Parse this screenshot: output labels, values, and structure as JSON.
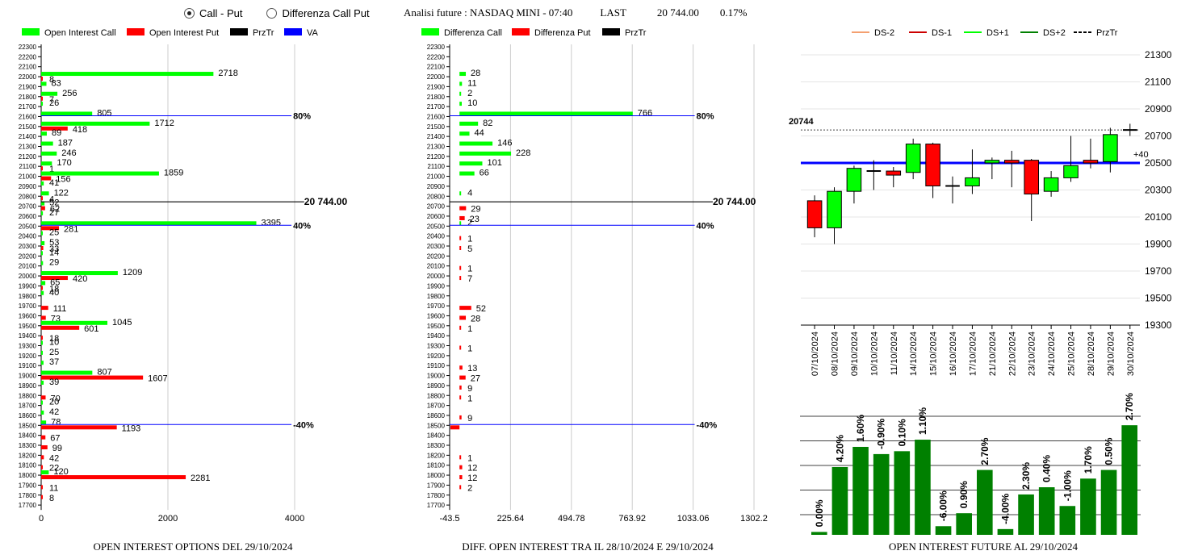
{
  "radio": {
    "option1": "Call - Put",
    "option2": "Differenza Call Put",
    "selected": 1
  },
  "header": {
    "title": "Analisi future : NASDAQ MINI - 07:40",
    "last_label": "LAST",
    "last_value": "20 744.00",
    "change": "0.17%"
  },
  "captions": {
    "left": "OPEN INTEREST OPTIONS DEL 29/10/2024",
    "middle": "DIFF. OPEN INTEREST TRA IL 28/10/2024 E 29/10/2024",
    "right": "OPEN INTEREST FUTURE AL 29/10/2024"
  },
  "colors": {
    "green": "#00ff00",
    "red": "#ff0000",
    "black": "#000000",
    "blue": "#0000ff",
    "bar_green": "#008000",
    "ds_minus2": "#f4a070"
  },
  "chart_data": [
    {
      "type": "bar",
      "orientation": "horizontal",
      "legend": [
        "Open Interest Call",
        "Open Interest Put",
        "PrzTr",
        "VA"
      ],
      "categories": [
        "22300",
        "22200",
        "22100",
        "22000",
        "21900",
        "21800",
        "21700",
        "21600",
        "21500",
        "21400",
        "21300",
        "21200",
        "21100",
        "21000",
        "20900",
        "20800",
        "20700",
        "20600",
        "20500",
        "20400",
        "20300",
        "20200",
        "20100",
        "20000",
        "19900",
        "19800",
        "19700",
        "19600",
        "19500",
        "19400",
        "19300",
        "19200",
        "19100",
        "19000",
        "18900",
        "18800",
        "18700",
        "18600",
        "18500",
        "18400",
        "18300",
        "18200",
        "18100",
        "18000",
        "17900",
        "17800",
        "17700"
      ],
      "series": [
        {
          "name": "Open Interest Call",
          "values": [
            0,
            0,
            0,
            2718,
            83,
            256,
            26,
            805,
            1712,
            89,
            187,
            246,
            170,
            1859,
            41,
            122,
            52,
            27,
            3395,
            25,
            53,
            14,
            29,
            1209,
            65,
            40,
            0,
            0,
            1045,
            0,
            10,
            25,
            37,
            807,
            39,
            0,
            20,
            42,
            78,
            0,
            0,
            0,
            0,
            120,
            0,
            0,
            0
          ]
        },
        {
          "name": "Open Interest Put",
          "values": [
            0,
            0,
            0,
            8,
            0,
            7,
            0,
            0,
            418,
            0,
            0,
            0,
            1,
            156,
            0,
            4,
            62,
            0,
            281,
            0,
            33,
            0,
            0,
            420,
            18,
            0,
            111,
            73,
            601,
            18,
            0,
            0,
            0,
            1607,
            0,
            70,
            0,
            0,
            1193,
            67,
            99,
            42,
            22,
            2281,
            11,
            8,
            0
          ]
        }
      ],
      "ticks": [
        "0",
        "2000",
        "4000"
      ],
      "xlim": [
        0,
        4000
      ],
      "price_line": {
        "value": 20744,
        "label": "20 744.00"
      },
      "va_lines": [
        {
          "level": "21600",
          "label": "80%"
        },
        {
          "level": "20500",
          "label": "40%"
        },
        {
          "level": "18500",
          "label": "-40%"
        }
      ]
    },
    {
      "type": "bar",
      "orientation": "horizontal",
      "legend": [
        "Differenza Call",
        "Differenza Put",
        "PrzTr"
      ],
      "categories": [
        "22300",
        "22200",
        "22100",
        "22000",
        "21900",
        "21800",
        "21700",
        "21600",
        "21500",
        "21400",
        "21300",
        "21200",
        "21100",
        "21000",
        "20900",
        "20800",
        "20700",
        "20600",
        "20500",
        "20400",
        "20300",
        "20200",
        "20100",
        "20000",
        "19900",
        "19800",
        "19700",
        "19600",
        "19500",
        "19400",
        "19300",
        "19200",
        "19100",
        "19000",
        "18900",
        "18800",
        "18700",
        "18600",
        "18500",
        "18400",
        "18300",
        "18200",
        "18100",
        "18000",
        "17900",
        "17800",
        "17700"
      ],
      "series": [
        {
          "name": "Differenza Call",
          "values": [
            0,
            0,
            0,
            28,
            11,
            2,
            10,
            766,
            82,
            44,
            146,
            228,
            101,
            66,
            0,
            4,
            0,
            0,
            2,
            0,
            0,
            0,
            0,
            0,
            0,
            0,
            0,
            0,
            0,
            0,
            0,
            0,
            0,
            0,
            0,
            0,
            0,
            0,
            0,
            0,
            0,
            0,
            0,
            0,
            0,
            0,
            0
          ]
        },
        {
          "name": "Differenza Put",
          "values": [
            0,
            0,
            0,
            0,
            0,
            0,
            0,
            0,
            0,
            0,
            0,
            0,
            0,
            0,
            0,
            0,
            29,
            23,
            0,
            1,
            5,
            0,
            1,
            7,
            0,
            0,
            52,
            28,
            1,
            0,
            1,
            0,
            13,
            27,
            9,
            1,
            0,
            9,
            -40,
            0,
            0,
            1,
            12,
            12,
            2,
            0,
            0
          ]
        }
      ],
      "labels_put": {
        "20700": "2",
        "20600": "23",
        "20700b": "29"
      },
      "ticks": [
        "-43.5",
        "225.64",
        "494.78",
        "763.92",
        "1033.06",
        "1302.2"
      ],
      "xlim": [
        -43.5,
        1302.2
      ],
      "price_line": {
        "value": 20744,
        "label": "20 744.00"
      },
      "va_lines": [
        {
          "level": "21600",
          "label": "80%"
        },
        {
          "level": "20500",
          "label": "40%"
        },
        {
          "level": "18500",
          "label": "-40%"
        }
      ]
    },
    {
      "type": "candlestick",
      "legend": [
        "DS-2",
        "DS-1",
        "DS+1",
        "DS+2",
        "PrzTr"
      ],
      "dates": [
        "07/10/2024",
        "08/10/2024",
        "09/10/2024",
        "10/10/2024",
        "11/10/2024",
        "14/10/2024",
        "15/10/2024",
        "16/10/2024",
        "17/10/2024",
        "21/10/2024",
        "22/10/2024",
        "23/10/2024",
        "24/10/2024",
        "25/10/2024",
        "28/10/2024",
        "29/10/2024",
        "30/10/2024"
      ],
      "candles": [
        {
          "o": 20220,
          "h": 20260,
          "l": 19950,
          "c": 20020
        },
        {
          "o": 20020,
          "h": 20320,
          "l": 19900,
          "c": 20290
        },
        {
          "o": 20290,
          "h": 20480,
          "l": 20200,
          "c": 20460
        },
        {
          "o": 20440,
          "h": 20520,
          "l": 20300,
          "c": 20450
        },
        {
          "o": 20440,
          "h": 20470,
          "l": 20320,
          "c": 20410
        },
        {
          "o": 20430,
          "h": 20680,
          "l": 20380,
          "c": 20640
        },
        {
          "o": 20640,
          "h": 20650,
          "l": 20240,
          "c": 20330
        },
        {
          "o": 20330,
          "h": 20400,
          "l": 20200,
          "c": 20330
        },
        {
          "o": 20330,
          "h": 20600,
          "l": 20270,
          "c": 20390
        },
        {
          "o": 20500,
          "h": 20540,
          "l": 20380,
          "c": 20520
        },
        {
          "o": 20520,
          "h": 20590,
          "l": 20320,
          "c": 20500
        },
        {
          "o": 20520,
          "h": 20530,
          "l": 20070,
          "c": 20270
        },
        {
          "o": 20290,
          "h": 20440,
          "l": 20250,
          "c": 20390
        },
        {
          "o": 20390,
          "h": 20700,
          "l": 20360,
          "c": 20480
        },
        {
          "o": 20520,
          "h": 20680,
          "l": 20460,
          "c": 20500
        },
        {
          "o": 20510,
          "h": 20760,
          "l": 20430,
          "c": 20710
        },
        {
          "o": 20744,
          "h": 20790,
          "l": 20700,
          "c": 20744
        }
      ],
      "yticks": [
        "21300",
        "21100",
        "20900",
        "20700",
        "20500",
        "20300",
        "20100",
        "19900",
        "19700",
        "19500",
        "19300"
      ],
      "ylim": [
        19300,
        21340
      ],
      "current_label": "20744",
      "current_value": 20744,
      "blue_line": 20500,
      "blue_label": "+40"
    },
    {
      "type": "bar",
      "categories": [
        "07/10",
        "08/10",
        "09/10",
        "10/10",
        "11/10",
        "14/10",
        "15/10",
        "16/10",
        "17/10",
        "21/10",
        "22/10",
        "23/10",
        "24/10",
        "25/10",
        "28/10",
        "29/10"
      ],
      "values": [
        0.2,
        4.7,
        6.1,
        5.6,
        5.8,
        6.6,
        0.6,
        1.5,
        4.5,
        0.4,
        2.8,
        3.3,
        2.0,
        3.9,
        4.5,
        7.6
      ],
      "labels": [
        "0.00%",
        "4.20%",
        "1.60%",
        "-0.90%",
        "0.10%",
        "1.10%",
        "-6.00%",
        "0.90%",
        "2.70%",
        "-4.00%",
        "2.30%",
        "0.40%",
        "-1.00%",
        "1.70%",
        "0.50%",
        "2.70%"
      ],
      "ylim": [
        0,
        8
      ]
    }
  ]
}
